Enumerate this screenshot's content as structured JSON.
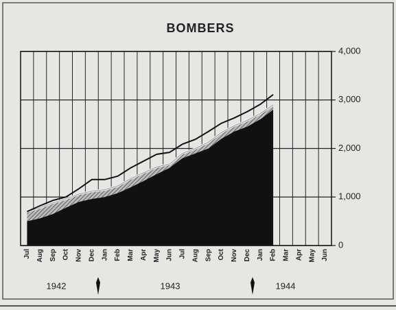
{
  "chart_data": {
    "type": "area",
    "title": "BOMBERS",
    "categories": [
      "Jul",
      "Aug",
      "Sep",
      "Oct",
      "Nov",
      "Dec",
      "Jan",
      "Feb",
      "Mar",
      "Apr",
      "May",
      "Jun",
      "Jul",
      "Aug",
      "Sep",
      "Oct",
      "Nov",
      "Dec",
      "Jan",
      "Feb",
      "Mar",
      "Apr",
      "May",
      "Jun"
    ],
    "year_labels": [
      "1942",
      "1943",
      "1944"
    ],
    "series": [
      {
        "color": "#111111",
        "values": [
          500,
          560,
          650,
          780,
          900,
          960,
          1000,
          1080,
          1200,
          1330,
          1470,
          1600,
          1800,
          1900,
          2000,
          2200,
          2350,
          2450,
          2600,
          2800,
          null,
          null,
          null,
          null
        ]
      },
      {
        "color": "#9a9a9a",
        "values": [
          700,
          780,
          880,
          960,
          1060,
          1120,
          1150,
          1230,
          1380,
          1500,
          1620,
          1680,
          1900,
          2000,
          2130,
          2330,
          2470,
          2580,
          2720,
          2900,
          null,
          null,
          null,
          null
        ]
      },
      {
        "color": "#111111",
        "values": [
          700,
          820,
          930,
          1000,
          1170,
          1360,
          1360,
          1430,
          1600,
          1740,
          1880,
          1920,
          2090,
          2190,
          2350,
          2520,
          2630,
          2760,
          2910,
          3110,
          null,
          null,
          null,
          null
        ]
      }
    ],
    "ylim": [
      0,
      4000
    ],
    "yticks": [
      0,
      {
        "value": 1000,
        "label": "1,000"
      },
      {
        "value": 2000,
        "label": "2,000"
      },
      {
        "value": 3000,
        "label": "3,000"
      },
      {
        "value": 4000,
        "label": "4,000"
      }
    ],
    "grid": true
  }
}
